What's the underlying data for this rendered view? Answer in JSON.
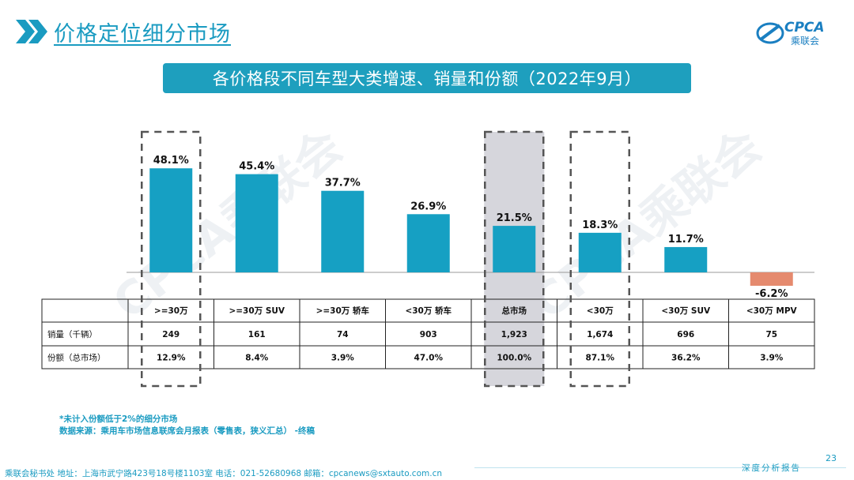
{
  "page": {
    "title": "价格定位细分市场",
    "logo_text": "CPCA",
    "logo_subtext": "乘联会",
    "page_number": "23",
    "watermark": "CPCA乘联会"
  },
  "banner": {
    "title": "各价格段不同车型大类增速、销量和份额（2022年9月）"
  },
  "colors": {
    "accent": "#1e9fbe",
    "bar": "#16a0c3",
    "negative": "#e58a6e",
    "highlight": "#d6d6dc",
    "text_blue": "#1a9bc1"
  },
  "chart_data": {
    "type": "bar",
    "categories": [
      ">=30万",
      ">=30万 SUV",
      ">=30万 轿车",
      "<30万 轿车",
      "总市场",
      "<30万",
      "<30万 SUV",
      "<30万 MPV"
    ],
    "values": [
      48.1,
      45.4,
      37.7,
      26.9,
      21.5,
      18.3,
      11.7,
      -6.2
    ],
    "value_labels": [
      "48.1%",
      "45.4%",
      "37.7%",
      "26.9%",
      "21.5%",
      "18.3%",
      "11.7%",
      "-6.2%"
    ],
    "unit": "%",
    "highlight_dashed": [
      0,
      4,
      5
    ],
    "highlight_shaded": [
      4
    ],
    "table": {
      "rows": [
        {
          "label": "销量（千辆）",
          "values": [
            "249",
            "161",
            "74",
            "903",
            "1,923",
            "1,674",
            "696",
            "75"
          ]
        },
        {
          "label": "份额（总市场）",
          "values": [
            "12.9%",
            "8.4%",
            "3.9%",
            "47.0%",
            "100.0%",
            "87.1%",
            "36.2%",
            "3.9%"
          ]
        }
      ]
    }
  },
  "notes": {
    "line1": "*未计入份额低于2%的细分市场",
    "line2": "数据来源：乘用车市场信息联席会月报表（零售表，狭义汇总） -终稿"
  },
  "footer": {
    "left": "乘联会秘书处   地址：上海市武宁路423号18号楼1103室  电话：021-52680968   邮箱：cpcanews@sxtauto.com.cn",
    "right": "深度分析报告"
  }
}
